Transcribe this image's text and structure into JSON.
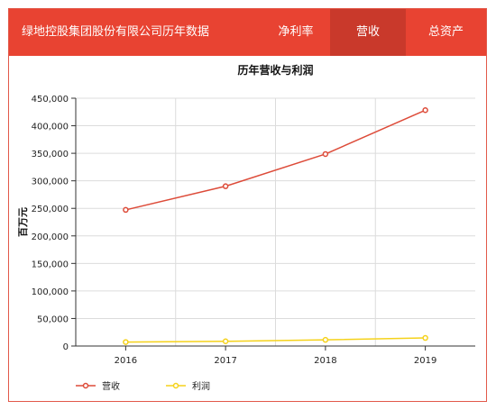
{
  "header": {
    "title": "绿地控股集团股份有限公司历年数据",
    "tabs": [
      {
        "label": "净利率",
        "active": false
      },
      {
        "label": "营收",
        "active": true
      },
      {
        "label": "总资产",
        "active": false
      }
    ],
    "bg_color": "#e84332",
    "active_color": "#c9392b"
  },
  "chart_data": {
    "type": "line",
    "title": "历年营收与利润",
    "xlabel": "",
    "ylabel": "百万元",
    "categories": [
      "2016",
      "2017",
      "2018",
      "2019"
    ],
    "ylim": [
      0,
      450000
    ],
    "yticks": [
      "0",
      "50,000",
      "100,000",
      "150,000",
      "200,000",
      "250,000",
      "300,000",
      "350,000",
      "400,000",
      "450,000"
    ],
    "series": [
      {
        "name": "营收",
        "color": "#dd4b39",
        "values": [
          247200,
          290200,
          348600,
          428300
        ]
      },
      {
        "name": "利润",
        "color": "#f5d21b",
        "values": [
          7200,
          8600,
          11200,
          14700
        ]
      }
    ],
    "grid": true,
    "legend": "bottom-left"
  }
}
